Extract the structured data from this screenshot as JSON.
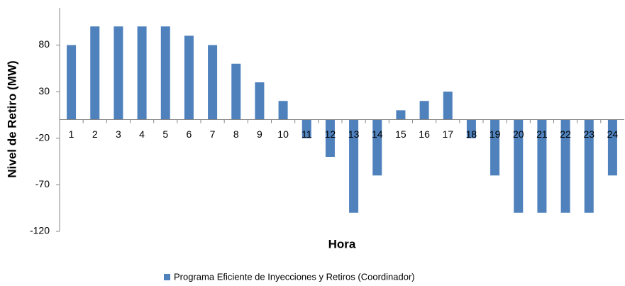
{
  "chart_data": {
    "type": "bar",
    "y_label": "Nivel de Retiro (MW)",
    "x_label": "Hora",
    "categories": [
      "1",
      "2",
      "3",
      "4",
      "5",
      "6",
      "7",
      "8",
      "9",
      "10",
      "11",
      "12",
      "13",
      "14",
      "15",
      "16",
      "17",
      "18",
      "19",
      "20",
      "21",
      "22",
      "23",
      "24"
    ],
    "series": [
      {
        "name": "Programa Eficiente de Inyecciones y Retiros (Coordinador)",
        "color": "#4f81bd",
        "values": [
          80,
          100,
          100,
          100,
          100,
          90,
          80,
          60,
          40,
          20,
          -20,
          -40,
          -100,
          -60,
          10,
          20,
          30,
          -20,
          -60,
          -100,
          -100,
          -100,
          -100,
          -60
        ]
      }
    ],
    "ylim": [
      -120,
      120
    ],
    "yticks": [
      -120,
      -70,
      -20,
      30,
      80
    ],
    "grid": false,
    "legend": "bottom"
  }
}
